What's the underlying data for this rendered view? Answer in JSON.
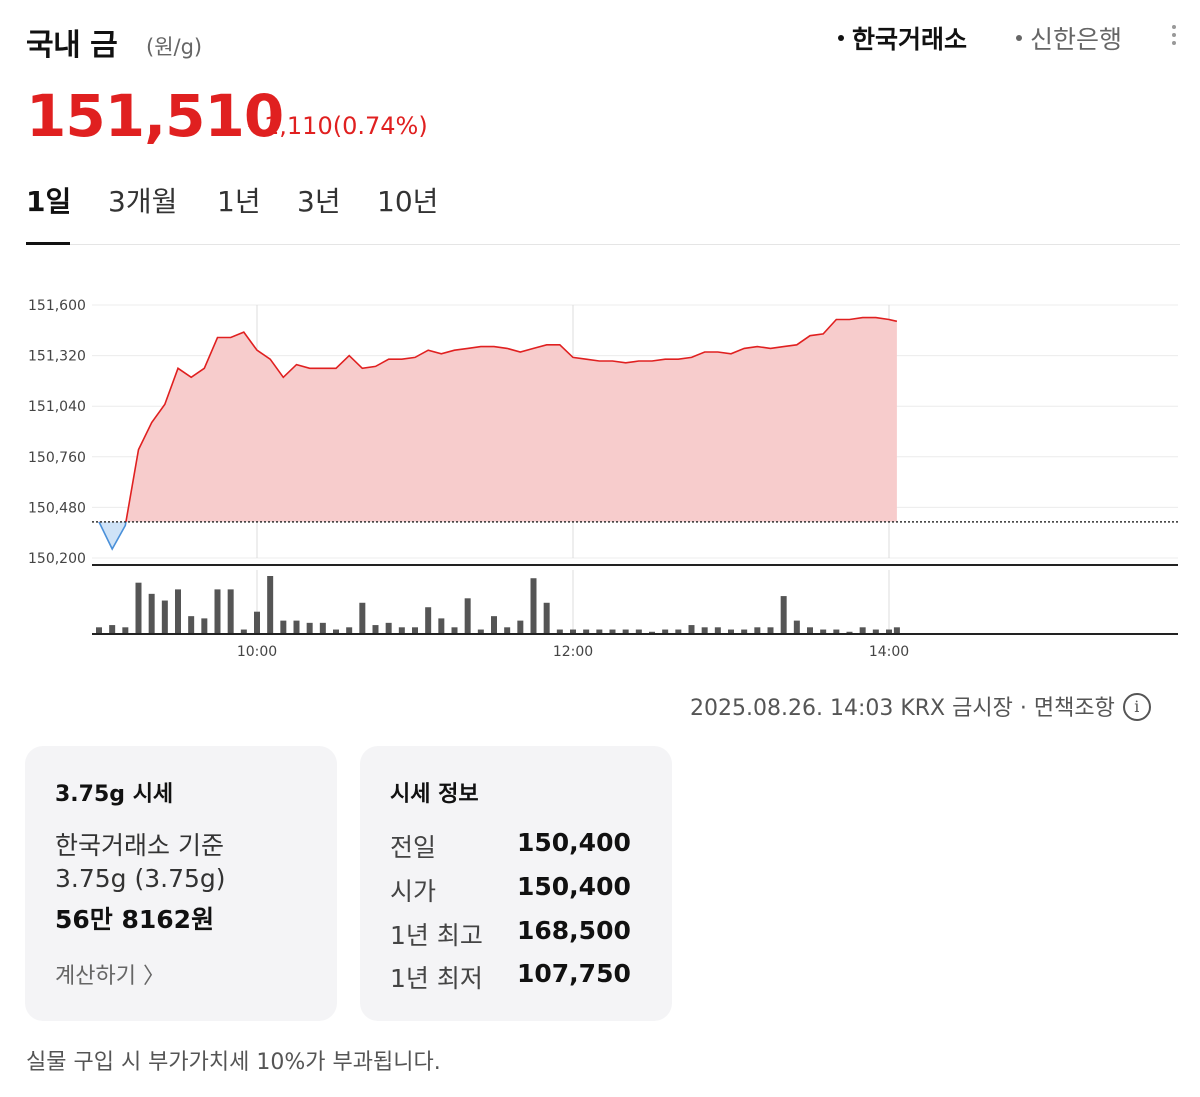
{
  "header": {
    "title": "국내 금",
    "unit": "(원/g)",
    "sources": [
      "한국거래소",
      "신한은행"
    ],
    "active_source": "한국거래소"
  },
  "price": {
    "current": "151,510",
    "change": "1,110",
    "change_pct": "(0.74%)",
    "direction": "up",
    "color_up": "#e02020",
    "color_down": "#4a90d9"
  },
  "tabs": [
    "1일",
    "3개월",
    "1년",
    "3년",
    "10년"
  ],
  "active_tab": "1일",
  "chart_data": {
    "type": "area",
    "ylim": [
      150200,
      151600
    ],
    "yticks": [
      "151,600",
      "151,320",
      "151,040",
      "150,760",
      "150,480",
      "150,200"
    ],
    "xticks": [
      "10:00",
      "12:00",
      "14:00"
    ],
    "baseline": 150400,
    "x": [
      "09:00",
      "09:05",
      "09:10",
      "09:15",
      "09:20",
      "09:25",
      "09:30",
      "09:35",
      "09:40",
      "09:45",
      "09:50",
      "09:55",
      "10:00",
      "10:05",
      "10:10",
      "10:15",
      "10:20",
      "10:25",
      "10:30",
      "10:35",
      "10:40",
      "10:45",
      "10:50",
      "10:55",
      "11:00",
      "11:05",
      "11:10",
      "11:15",
      "11:20",
      "11:25",
      "11:30",
      "11:35",
      "11:40",
      "11:45",
      "11:50",
      "11:55",
      "12:00",
      "12:05",
      "12:10",
      "12:15",
      "12:20",
      "12:25",
      "12:30",
      "12:35",
      "12:40",
      "12:45",
      "12:50",
      "12:55",
      "13:00",
      "13:05",
      "13:10",
      "13:15",
      "13:20",
      "13:25",
      "13:30",
      "13:35",
      "13:40",
      "13:45",
      "13:50",
      "13:55",
      "14:00",
      "14:03"
    ],
    "values": [
      150400,
      150250,
      150380,
      150800,
      150950,
      151050,
      151250,
      151200,
      151250,
      151420,
      151420,
      151450,
      151350,
      151300,
      151200,
      151270,
      151250,
      151250,
      151250,
      151320,
      151250,
      151260,
      151300,
      151300,
      151310,
      151350,
      151330,
      151350,
      151360,
      151370,
      151370,
      151360,
      151340,
      151360,
      151380,
      151380,
      151310,
      151300,
      151290,
      151290,
      151280,
      151290,
      151290,
      151300,
      151300,
      151310,
      151340,
      151340,
      151330,
      151360,
      151370,
      151360,
      151370,
      151380,
      151430,
      151440,
      151520,
      151520,
      151530,
      151530,
      151520,
      151510
    ],
    "volume": [
      3,
      4,
      3,
      23,
      18,
      15,
      20,
      8,
      7,
      20,
      20,
      2,
      10,
      26,
      6,
      6,
      5,
      5,
      2,
      3,
      14,
      4,
      5,
      3,
      3,
      12,
      7,
      3,
      16,
      2,
      8,
      3,
      6,
      25,
      14,
      2,
      2,
      2,
      2,
      2,
      2,
      2,
      1,
      2,
      2,
      4,
      3,
      3,
      2,
      2,
      3,
      3,
      17,
      6,
      3,
      2,
      2,
      1,
      3,
      2,
      2,
      3
    ]
  },
  "meta": {
    "timestamp": "2025.08.26. 14:03 KRX 금시장",
    "separator": "·",
    "disclaimer": "면책조항",
    "info_icon": "i"
  },
  "card_price": {
    "title": "3.75g 시세",
    "line1": "한국거래소 기준",
    "line2": "3.75g (3.75g)",
    "line3": "56만 8162원",
    "link": "계산하기 〉"
  },
  "card_info": {
    "title": "시세 정보",
    "rows": [
      {
        "label": "전일",
        "value": "150,400"
      },
      {
        "label": "시가",
        "value": "150,400"
      },
      {
        "label": "1년 최고",
        "value": "168,500"
      },
      {
        "label": "1년 최저",
        "value": "107,750"
      }
    ]
  },
  "footnote": "실물 구입 시 부가가치세 10%가 부과됩니다."
}
